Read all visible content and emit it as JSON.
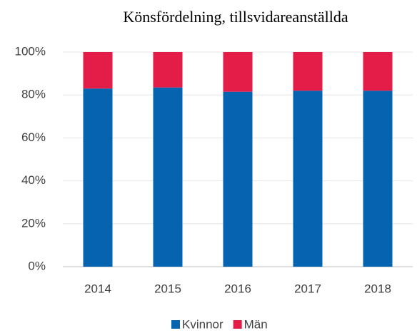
{
  "chart_data": {
    "type": "stacked_bar",
    "title": "Könsfördelning, tillsvidareanställda",
    "categories": [
      "2014",
      "2015",
      "2016",
      "2017",
      "2018"
    ],
    "series": [
      {
        "name": "Kvinnor",
        "color": "#0563b0",
        "values": [
          83,
          83.5,
          81.5,
          82,
          82
        ]
      },
      {
        "name": "Män",
        "color": "#e31c48",
        "values": [
          17,
          16.5,
          18.5,
          18,
          18
        ]
      }
    ],
    "ylim": [
      0,
      100
    ],
    "yticks": [
      {
        "value": 0,
        "label": "0%"
      },
      {
        "value": 20,
        "label": "20%"
      },
      {
        "value": 40,
        "label": "40%"
      },
      {
        "value": 60,
        "label": "60%"
      },
      {
        "value": 80,
        "label": "80%"
      },
      {
        "value": 100,
        "label": "100%"
      }
    ],
    "grid": true,
    "legend": "bottom"
  }
}
